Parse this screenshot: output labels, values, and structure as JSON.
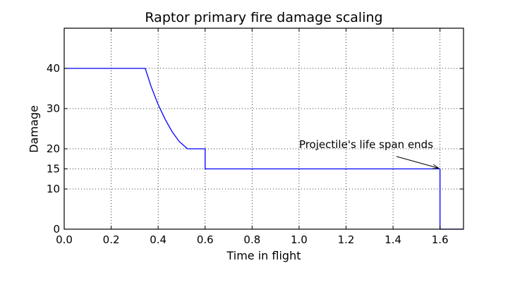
{
  "chart_data": {
    "type": "line",
    "title": "Raptor primary fire damage scaling",
    "xlabel": "Time in flight",
    "ylabel": "Damage",
    "xlim": [
      0.0,
      1.7
    ],
    "ylim": [
      0,
      50
    ],
    "xticks": [
      0.0,
      0.2,
      0.4,
      0.6,
      0.8,
      1.0,
      1.2,
      1.4,
      1.6
    ],
    "xtick_labels": [
      "0.0",
      "0.2",
      "0.4",
      "0.6",
      "0.8",
      "1.0",
      "1.2",
      "1.4",
      "1.6"
    ],
    "yticks": [
      0,
      10,
      15,
      20,
      30,
      40
    ],
    "ytick_labels": [
      "0",
      "10",
      "15",
      "20",
      "30",
      "40"
    ],
    "grid": true,
    "series": [
      {
        "name": "damage",
        "color": "#0000ff",
        "x": [
          0.0,
          0.345,
          0.37,
          0.4,
          0.43,
          0.46,
          0.49,
          0.525,
          0.6,
          0.6,
          1.6,
          1.6,
          1.7
        ],
        "y": [
          40,
          40,
          35.5,
          31.0,
          27.3,
          24.2,
          21.8,
          20,
          20,
          15,
          15,
          0,
          0
        ]
      }
    ],
    "annotations": [
      {
        "text": "Projectile's life span ends",
        "text_xy": [
          1.0,
          20.2
        ],
        "arrow_to": [
          1.6,
          15
        ]
      }
    ]
  }
}
